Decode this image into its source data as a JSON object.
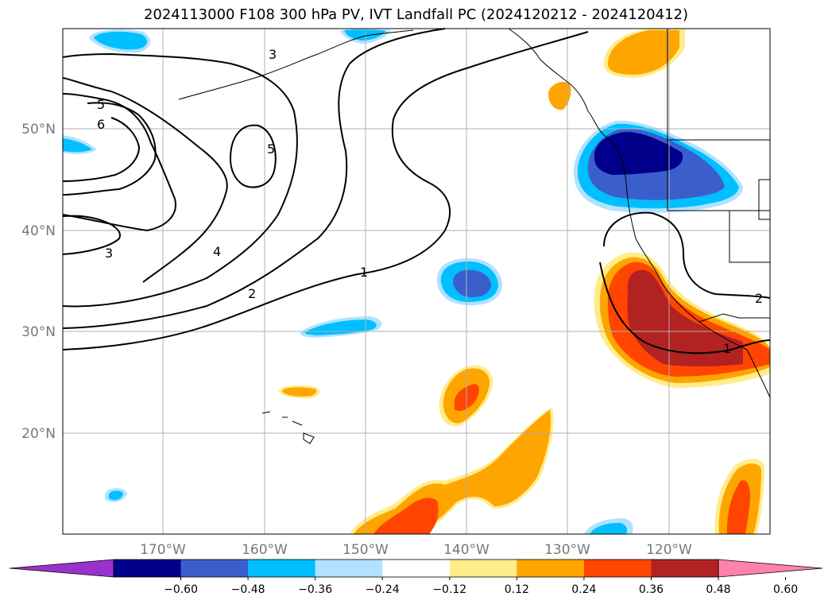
{
  "title": "2024113000 F108 300 hPa PV, IVT Landfall PC (2024120212 - 2024120412)",
  "map": {
    "lat_labels": [
      {
        "lat": 50,
        "text": "50°N"
      },
      {
        "lat": 40,
        "text": "40°N"
      },
      {
        "lat": 30,
        "text": "30°N"
      },
      {
        "lat": 20,
        "text": "20°N"
      }
    ],
    "lon_labels": [
      {
        "lon": -170,
        "text": "170°W"
      },
      {
        "lon": -160,
        "text": "160°W"
      },
      {
        "lon": -150,
        "text": "150°W"
      },
      {
        "lon": -140,
        "text": "140°W"
      },
      {
        "lon": -130,
        "text": "130°W"
      },
      {
        "lon": -120,
        "text": "120°W"
      }
    ],
    "contour_labels": [
      "1",
      "2",
      "3",
      "4",
      "5",
      "6"
    ]
  },
  "colorbar": {
    "colors": [
      "#9932cc",
      "#00008b",
      "#3a5fcd",
      "#00bfff",
      "#b0e2ff",
      "#ffffff",
      "#ffec8b",
      "#ffa500",
      "#ff4500",
      "#b22222",
      "#ff82ab"
    ],
    "ticks": [
      "−0.60",
      "−0.48",
      "−0.36",
      "−0.24",
      "−0.12",
      "0.12",
      "0.24",
      "0.36",
      "0.48",
      "0.60"
    ]
  }
}
